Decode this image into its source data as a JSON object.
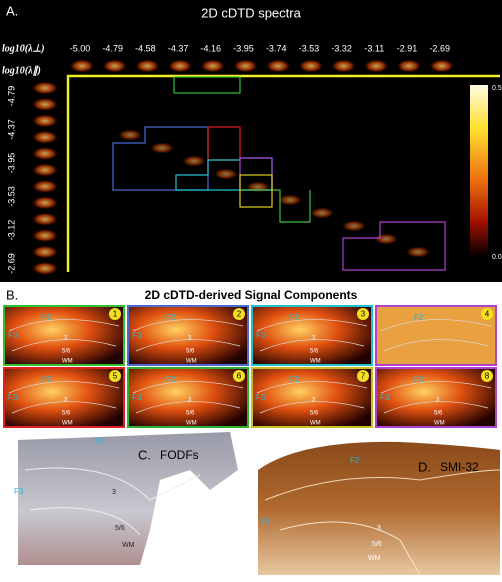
{
  "panel_a": {
    "label": "A.",
    "title": "2D cDTD spectra",
    "row_axis_label": "log10(λ⊥)",
    "col_axis_label": "log10(λ∥)",
    "top_ticks": [
      "-5.00",
      "-4.79",
      "-4.58",
      "-4.37",
      "-4.16",
      "-3.95",
      "-3.74",
      "-3.53",
      "-3.32",
      "-3.11",
      "-2.91",
      "-2.69"
    ],
    "left_ticks": [
      "-4.79",
      "-4.37",
      "-3.95",
      "-3.53",
      "-3.12",
      "-2.69"
    ],
    "colorbar_max": "0.5",
    "colorbar_min": "0.0"
  },
  "panel_b": {
    "label": "B.",
    "title": "2D cDTD-derived Signal Components",
    "tiles": [
      {
        "number": "1",
        "labels": [
          "F2",
          "F3",
          "3",
          "5/6",
          "WM"
        ]
      },
      {
        "number": "2",
        "labels": [
          "F2",
          "F3",
          "3",
          "5/6",
          "WM"
        ]
      },
      {
        "number": "3",
        "labels": [
          "F2",
          "F3",
          "3",
          "5/6",
          "WM"
        ]
      },
      {
        "number": "4",
        "labels": [
          "F2"
        ]
      },
      {
        "number": "5",
        "labels": [
          "F2",
          "F3",
          "3",
          "5/6",
          "WM"
        ]
      },
      {
        "number": "6",
        "labels": [
          "F2",
          "F3",
          "3",
          "5/6",
          "WM"
        ]
      },
      {
        "number": "7",
        "labels": [
          "F2",
          "F3",
          "3",
          "5/6",
          "WM"
        ]
      },
      {
        "number": "8",
        "labels": [
          "F2",
          "F3",
          "3",
          "5/6",
          "WM"
        ]
      }
    ]
  },
  "panel_c": {
    "label": "C.",
    "title": "FODFs",
    "labels": [
      "F2",
      "F3",
      "3",
      "5/6",
      "WM"
    ]
  },
  "panel_d": {
    "label": "D.",
    "title": "SMI-32",
    "labels": [
      "F2",
      "F3",
      "3",
      "5/6",
      "WM"
    ]
  }
}
